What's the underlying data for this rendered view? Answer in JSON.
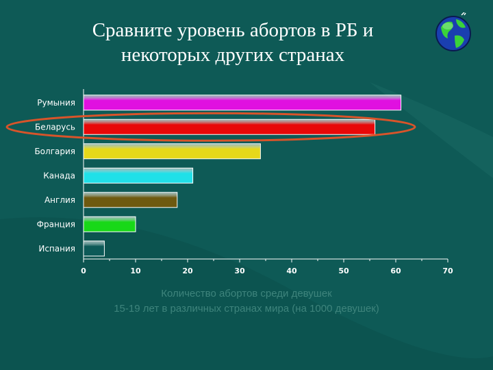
{
  "slide": {
    "title_line1": "Сравните уровень абортов в РБ и",
    "title_line2": "некоторых других странах",
    "caption_line1": "Количество абортов среди девушек",
    "caption_line2": "15-19 лет в различных странах мира (на 1000 девушек)"
  },
  "icons": {
    "globe": "globe-icon"
  },
  "colors": {
    "background": "#0e5a56",
    "highlight_ellipse": "#d8542a",
    "axis": "#ffffff",
    "label_text": "#ffffff"
  },
  "chart_data": {
    "type": "bar",
    "orientation": "horizontal",
    "categories": [
      "Румыния",
      "Беларусь",
      "Болгария",
      "Канада",
      "Англия",
      "Франция",
      "Испания"
    ],
    "values": [
      61,
      56,
      34,
      21,
      18,
      10,
      4
    ],
    "bar_colors": [
      "#e010e0",
      "#e80808",
      "#e6d81a",
      "#20e0e8",
      "#6e5a10",
      "#18d818",
      "#0d5a58"
    ],
    "xlim": [
      0,
      70
    ],
    "xticks": [
      0,
      10,
      20,
      30,
      40,
      50,
      60,
      70
    ],
    "highlight_category": "Беларусь",
    "grid": false,
    "legend": "none"
  }
}
